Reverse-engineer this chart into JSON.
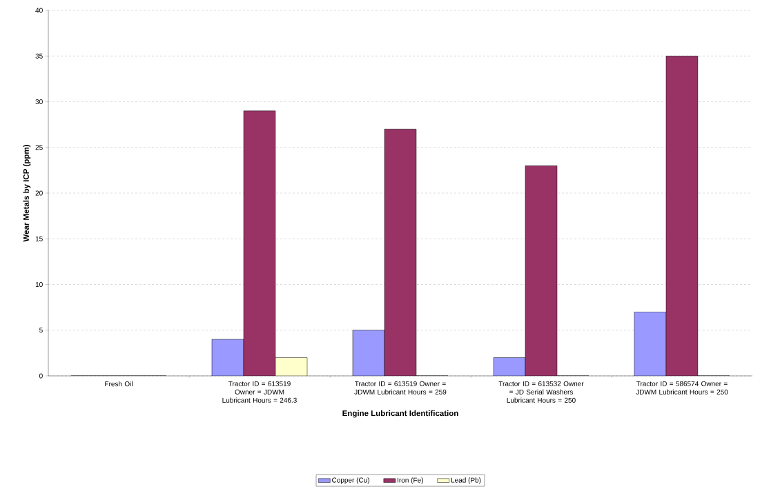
{
  "chart_data": {
    "type": "bar",
    "xlabel": "Engine Lubricant Identification",
    "ylabel": "Wear Metals by ICP (ppm)",
    "categories": [
      "Fresh Oil",
      "Tractor ID = 613519 Owner = JDWM Lubricant Hours = 246.3",
      "Tractor ID = 613519 Owner = JDWM Lubricant Hours = 259",
      "Tractor ID = 613532 Owner = JD Serial Washers Lubricant Hours = 250",
      "Tractor ID = 586574 Owner = JDWM Lubricant Hours = 250"
    ],
    "series": [
      {
        "name": "Copper (Cu)",
        "color": "#9999ff",
        "values": [
          0,
          4,
          5,
          2,
          7
        ]
      },
      {
        "name": "Iron (Fe)",
        "color": "#993366",
        "values": [
          0,
          29,
          27,
          23,
          35
        ]
      },
      {
        "name": "Lead (Pb)",
        "color": "#ffffcc",
        "values": [
          0,
          2,
          0,
          0,
          0
        ]
      }
    ],
    "ylim": [
      0,
      40
    ],
    "yticks": [
      0,
      5,
      10,
      15,
      20,
      25,
      30,
      35,
      40
    ],
    "grid": "y",
    "legend": "bottom"
  }
}
